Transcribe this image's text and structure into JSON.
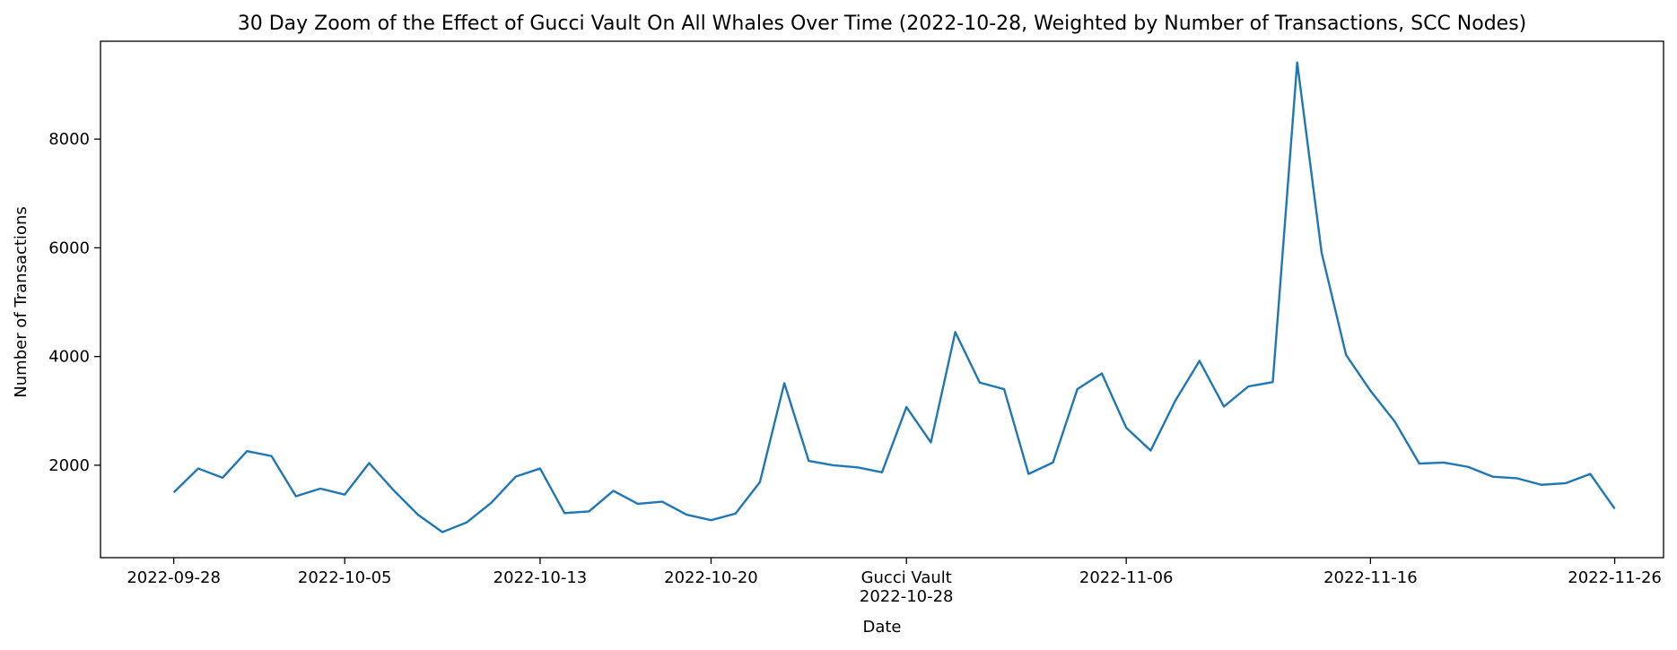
{
  "chart_data": {
    "type": "line",
    "title": "30 Day Zoom of the Effect of Gucci Vault On All Whales Over Time (2022-10-28, Weighted by Number of Transactions, SCC Nodes)",
    "xlabel": "Date",
    "ylabel": "Number of Transactions",
    "line_color": "#1f77b4",
    "grid": false,
    "legend": "none",
    "xlim": [
      "2022-09-25",
      "2022-11-28"
    ],
    "ylim": [
      300,
      9800
    ],
    "y_ticks": [
      2000,
      4000,
      6000,
      8000
    ],
    "x_ticks": [
      {
        "date": "2022-09-28",
        "label": "2022-09-28"
      },
      {
        "date": "2022-10-05",
        "label": "2022-10-05"
      },
      {
        "date": "2022-10-13",
        "label": "2022-10-13"
      },
      {
        "date": "2022-10-20",
        "label": "2022-10-20"
      },
      {
        "date": "2022-10-28",
        "label": "2022-10-28",
        "annotation": "Gucci Vault"
      },
      {
        "date": "2022-11-06",
        "label": "2022-11-06"
      },
      {
        "date": "2022-11-16",
        "label": "2022-11-16"
      },
      {
        "date": "2022-11-26",
        "label": "2022-11-26"
      }
    ],
    "x": [
      "2022-09-28",
      "2022-09-29",
      "2022-09-30",
      "2022-10-01",
      "2022-10-02",
      "2022-10-03",
      "2022-10-04",
      "2022-10-05",
      "2022-10-06",
      "2022-10-07",
      "2022-10-08",
      "2022-10-09",
      "2022-10-10",
      "2022-10-11",
      "2022-10-12",
      "2022-10-13",
      "2022-10-14",
      "2022-10-15",
      "2022-10-16",
      "2022-10-17",
      "2022-10-18",
      "2022-10-19",
      "2022-10-20",
      "2022-10-21",
      "2022-10-22",
      "2022-10-23",
      "2022-10-24",
      "2022-10-25",
      "2022-10-26",
      "2022-10-27",
      "2022-10-28",
      "2022-10-29",
      "2022-10-30",
      "2022-10-31",
      "2022-11-01",
      "2022-11-02",
      "2022-11-03",
      "2022-11-04",
      "2022-11-05",
      "2022-11-06",
      "2022-11-07",
      "2022-11-08",
      "2022-11-09",
      "2022-11-10",
      "2022-11-11",
      "2022-11-12",
      "2022-11-13",
      "2022-11-14",
      "2022-11-15",
      "2022-11-16",
      "2022-11-17",
      "2022-11-18",
      "2022-11-19",
      "2022-11-20",
      "2022-11-21",
      "2022-11-22",
      "2022-11-23",
      "2022-11-24",
      "2022-11-25",
      "2022-11-26"
    ],
    "series": [
      {
        "values": [
          1500,
          1940,
          1770,
          2260,
          2170,
          1430,
          1570,
          1460,
          2040,
          1540,
          1090,
          770,
          950,
          1310,
          1790,
          1940,
          1120,
          1150,
          1530,
          1290,
          1330,
          1090,
          990,
          1110,
          1690,
          3510,
          2080,
          2000,
          1960,
          1870,
          3070,
          2420,
          4450,
          3520,
          3400,
          1840,
          2050,
          3400,
          3690,
          2690,
          2270,
          3180,
          3920,
          3080,
          3450,
          3530,
          9410,
          5910,
          4030,
          3370,
          2800,
          2030,
          2050,
          1970,
          1790,
          1760,
          1640,
          1670,
          1840,
          1200
        ]
      }
    ]
  }
}
